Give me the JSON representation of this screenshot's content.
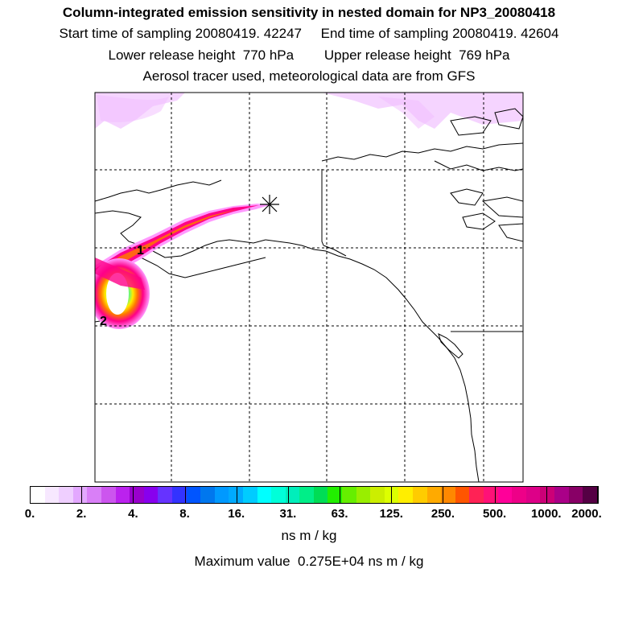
{
  "header": {
    "title": "Column-integrated emission sensitivity in nested domain for NP3_20080418",
    "sampling_line": "Start time of sampling 20080419. 42247     End time of sampling 20080419. 42604",
    "release_line": "Lower release height  770 hPa        Upper release height  769 hPa",
    "tracer_line": "Aerosol tracer used, meteorological data are from GFS"
  },
  "map": {
    "region": "Alaska and western Canada",
    "receptor_marker": "asterisk",
    "plume_labels": [
      "1",
      "2"
    ],
    "plume_colors": [
      "#ff99ff",
      "#ff0088",
      "#ff7700",
      "#ffee00",
      "#00ffcc",
      "#99ccff"
    ]
  },
  "colorbar": {
    "colors": [
      "#ffffff",
      "#f7e8ff",
      "#efcfff",
      "#e3a8ff",
      "#d97ff7",
      "#cc55ee",
      "#bb22ee",
      "#9900cc",
      "#8800ee",
      "#6633ff",
      "#3333ff",
      "#0055ff",
      "#0077ee",
      "#0099ff",
      "#00aaff",
      "#00ccff",
      "#00ffff",
      "#00ffd9",
      "#00eebb",
      "#00ee88",
      "#00dd55",
      "#22ee00",
      "#66ee00",
      "#99ee00",
      "#ccee00",
      "#ddff00",
      "#ffee00",
      "#ffcc00",
      "#ffaa00",
      "#ff8800",
      "#ff5500",
      "#ff2255",
      "#ff1177",
      "#ff0099",
      "#ee0088",
      "#dd0088",
      "#cc0077",
      "#aa0088",
      "#880066",
      "#550044"
    ],
    "tick_labels": [
      "0.",
      "2.",
      "4.",
      "8.",
      "16.",
      "31.",
      "63.",
      "125.",
      "250.",
      "500.",
      "1000.",
      "2000."
    ],
    "units": "ns m / kg"
  },
  "footer": {
    "max_value": "Maximum value  0.275E+04 ns m / kg"
  }
}
